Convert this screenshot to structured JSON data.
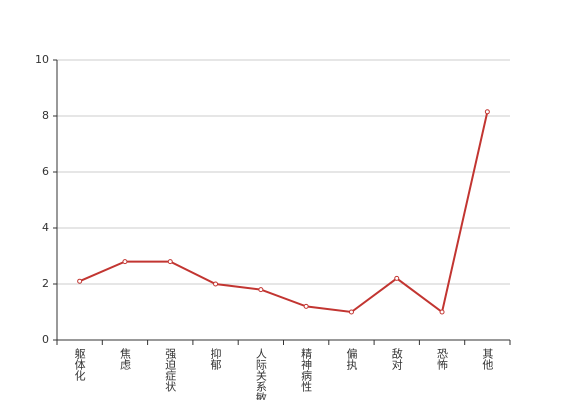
{
  "chart_data": {
    "type": "line",
    "categories": [
      "躯体化",
      "焦虑",
      "强迫症状",
      "抑郁",
      "人际关系敏感",
      "精神病性",
      "偏执",
      "敌对",
      "恐怖",
      "其他"
    ],
    "series": [
      {
        "color": "#c23531",
        "values": [
          2.1,
          2.8,
          2.8,
          2.0,
          1.8,
          1.2,
          1.0,
          2.2,
          1.0,
          8.15
        ]
      }
    ],
    "ylim": [
      0,
      10
    ],
    "yticks": [
      0,
      2,
      4,
      6,
      8,
      10
    ],
    "grid": true
  }
}
